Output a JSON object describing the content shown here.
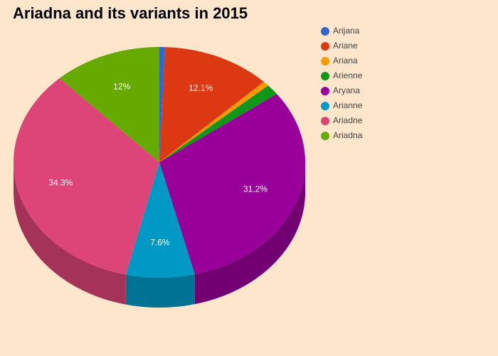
{
  "chart_data": {
    "type": "pie",
    "title": "Ariadna and its variants in 2015",
    "categories": [
      "Arijana",
      "Ariane",
      "Ariana",
      "Arienne",
      "Aryana",
      "Arianne",
      "Ariadne",
      "Ariadna"
    ],
    "values": [
      0.6,
      12.1,
      0.7,
      1.5,
      31.2,
      7.6,
      34.3,
      12
    ],
    "value_labels": [
      null,
      "12.1%",
      null,
      null,
      "31.2%",
      "7.6%",
      "34.3%",
      "12%"
    ],
    "colors": [
      "#3366cc",
      "#dc3912",
      "#ff9900",
      "#109618",
      "#990099",
      "#0099c6",
      "#dd4477",
      "#66aa00"
    ],
    "legend": "top-right"
  }
}
